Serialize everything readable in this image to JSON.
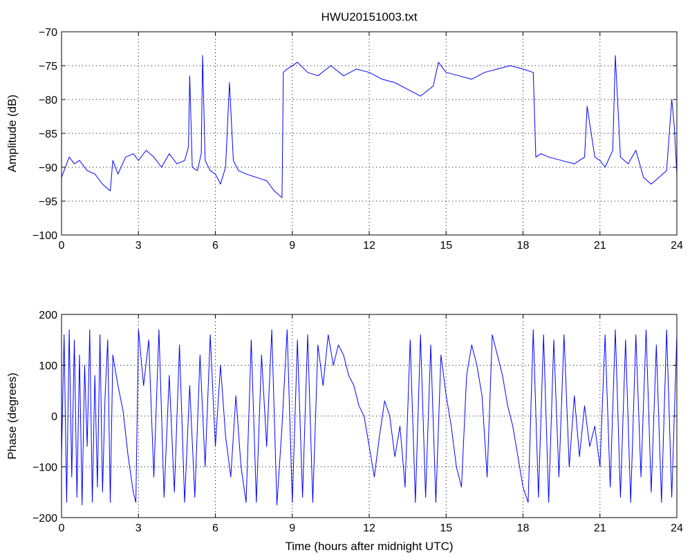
{
  "chart_data": [
    {
      "type": "line",
      "title": "HWU20151003.txt",
      "xlabel": "",
      "ylabel": "Amplitude (dB)",
      "xlim": [
        0,
        24
      ],
      "ylim": [
        -100,
        -70
      ],
      "xticks": [
        "0",
        "3",
        "6",
        "9",
        "12",
        "15",
        "18",
        "21",
        "24"
      ],
      "yticks": [
        "−70",
        "−75",
        "−80",
        "−85",
        "−90",
        "−95",
        "−100"
      ],
      "grid": true,
      "line_color": "#0000ff",
      "x": [
        0,
        0.3,
        0.5,
        0.7,
        1.0,
        1.3,
        1.6,
        1.9,
        2.0,
        2.2,
        2.5,
        2.8,
        3.0,
        3.3,
        3.6,
        3.9,
        4.2,
        4.5,
        4.8,
        4.95,
        5.0,
        5.1,
        5.3,
        5.45,
        5.5,
        5.6,
        5.8,
        6.0,
        6.2,
        6.4,
        6.55,
        6.7,
        6.9,
        7.2,
        7.6,
        8.0,
        8.3,
        8.6,
        8.65,
        8.8,
        9.2,
        9.6,
        10.0,
        10.5,
        11.0,
        11.5,
        12.0,
        12.5,
        13.0,
        13.5,
        14.0,
        14.5,
        14.7,
        15.0,
        15.5,
        16.0,
        16.5,
        17.0,
        17.5,
        18.0,
        18.4,
        18.5,
        18.7,
        19.0,
        19.5,
        20.0,
        20.4,
        20.5,
        20.8,
        21.0,
        21.2,
        21.5,
        21.6,
        21.8,
        22.1,
        22.4,
        22.7,
        23.0,
        23.3,
        23.6,
        23.8,
        23.9,
        24.0
      ],
      "values": [
        -91.5,
        -88.5,
        -89.5,
        -89.0,
        -90.5,
        -91.0,
        -92.5,
        -93.5,
        -89.0,
        -91.0,
        -88.5,
        -88.0,
        -89.0,
        -87.5,
        -88.5,
        -90.0,
        -88.0,
        -89.5,
        -89.0,
        -87.0,
        -76.5,
        -90.0,
        -90.5,
        -88.0,
        -73.5,
        -89.0,
        -90.5,
        -91.0,
        -92.5,
        -90.0,
        -77.5,
        -89.0,
        -90.5,
        -91.0,
        -91.5,
        -92.0,
        -93.5,
        -94.5,
        -76.0,
        -75.5,
        -74.5,
        -76.0,
        -76.5,
        -75.0,
        -76.5,
        -75.5,
        -76.0,
        -77.0,
        -77.5,
        -78.5,
        -79.5,
        -78.0,
        -74.5,
        -76.0,
        -76.5,
        -77.0,
        -76.0,
        -75.5,
        -75.0,
        -75.5,
        -76.0,
        -88.5,
        -88.0,
        -88.5,
        -89.0,
        -89.5,
        -88.5,
        -81.0,
        -88.5,
        -89.0,
        -90.0,
        -87.5,
        -73.5,
        -88.5,
        -89.5,
        -87.5,
        -91.5,
        -92.5,
        -91.5,
        -90.5,
        -80.0,
        -84.0,
        -91.0
      ]
    },
    {
      "type": "line",
      "title": "",
      "xlabel": "Time (hours after midnight UTC)",
      "ylabel": "Phase (degrees)",
      "xlim": [
        0,
        24
      ],
      "ylim": [
        -200,
        200
      ],
      "xticks": [
        "0",
        "3",
        "6",
        "9",
        "12",
        "15",
        "18",
        "21",
        "24"
      ],
      "yticks": [
        "200",
        "100",
        "0",
        "−100",
        "−200"
      ],
      "grid": true,
      "line_color": "#0000ff",
      "x": [
        0,
        0.1,
        0.2,
        0.3,
        0.4,
        0.5,
        0.6,
        0.7,
        0.8,
        0.9,
        1.0,
        1.1,
        1.2,
        1.3,
        1.4,
        1.5,
        1.6,
        1.7,
        1.8,
        1.9,
        2.0,
        2.2,
        2.4,
        2.6,
        2.8,
        2.9,
        3.0,
        3.2,
        3.4,
        3.6,
        3.8,
        4.0,
        4.2,
        4.4,
        4.6,
        4.8,
        5.0,
        5.2,
        5.4,
        5.6,
        5.8,
        6.0,
        6.2,
        6.4,
        6.6,
        6.8,
        7.0,
        7.2,
        7.4,
        7.6,
        7.8,
        8.0,
        8.2,
        8.4,
        8.6,
        8.8,
        9.0,
        9.2,
        9.4,
        9.6,
        9.8,
        10.0,
        10.2,
        10.4,
        10.6,
        10.8,
        11.0,
        11.2,
        11.4,
        11.6,
        11.8,
        12.0,
        12.2,
        12.4,
        12.6,
        12.8,
        13.0,
        13.2,
        13.4,
        13.6,
        13.8,
        14.0,
        14.2,
        14.4,
        14.6,
        14.8,
        15.0,
        15.2,
        15.4,
        15.6,
        15.8,
        16.0,
        16.2,
        16.4,
        16.6,
        16.8,
        17.0,
        17.2,
        17.4,
        17.6,
        17.8,
        18.0,
        18.2,
        18.4,
        18.6,
        18.8,
        19.0,
        19.2,
        19.4,
        19.6,
        19.8,
        20.0,
        20.2,
        20.4,
        20.6,
        20.8,
        21.0,
        21.2,
        21.4,
        21.6,
        21.8,
        22.0,
        22.2,
        22.4,
        22.6,
        22.8,
        23.0,
        23.2,
        23.4,
        23.6,
        23.8,
        24.0
      ],
      "values": [
        -80,
        160,
        -170,
        170,
        -120,
        150,
        -160,
        120,
        -175,
        100,
        -60,
        170,
        -170,
        80,
        -140,
        160,
        -150,
        40,
        150,
        -170,
        120,
        60,
        10,
        -80,
        -150,
        -170,
        170,
        60,
        150,
        -120,
        170,
        -160,
        80,
        -150,
        140,
        -170,
        60,
        -160,
        120,
        -100,
        160,
        -60,
        100,
        -40,
        -120,
        40,
        -100,
        -170,
        150,
        -170,
        120,
        -60,
        170,
        -175,
        -20,
        170,
        -170,
        150,
        -160,
        160,
        -170,
        140,
        60,
        160,
        100,
        140,
        120,
        80,
        60,
        20,
        0,
        -60,
        -120,
        -40,
        30,
        0,
        -80,
        -20,
        -140,
        150,
        -170,
        160,
        -160,
        140,
        -170,
        120,
        40,
        -20,
        -100,
        -140,
        80,
        140,
        100,
        40,
        -120,
        160,
        120,
        80,
        20,
        -20,
        -80,
        -140,
        -170,
        170,
        -160,
        160,
        -170,
        150,
        -120,
        160,
        -100,
        40,
        -80,
        20,
        -60,
        -20,
        -100,
        160,
        -140,
        170,
        -160,
        150,
        -170,
        160,
        -120,
        170,
        -150,
        140,
        -170,
        170,
        -160,
        160
      ]
    }
  ]
}
